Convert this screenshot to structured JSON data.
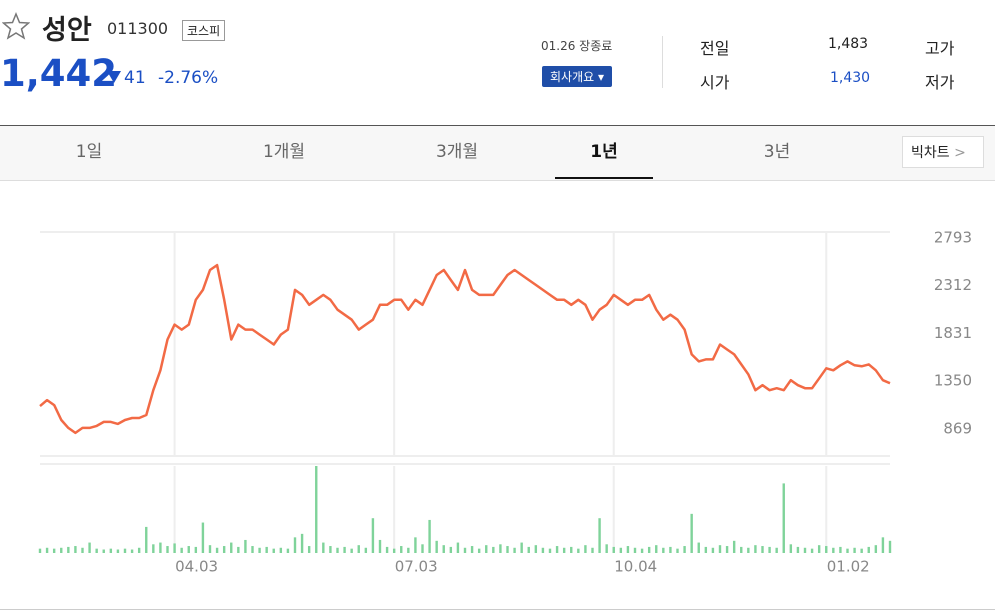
{
  "header": {
    "name": "성안",
    "code": "011300",
    "market": "코스피",
    "price": "1,442",
    "change": "41",
    "change_pct": "-2.76%",
    "status": "01.26 장종료",
    "company_button": "회사개요",
    "info": [
      {
        "label": "전일",
        "value": "1,483"
      },
      {
        "label": "시가",
        "value": "1,430"
      }
    ],
    "extra_labels": [
      "고가",
      "저가"
    ]
  },
  "tabs": {
    "items": [
      "1일",
      "1개월",
      "3개월",
      "1년",
      "3년"
    ],
    "active": 3,
    "big_chart": "빅차트"
  },
  "chart_data": {
    "type": "line",
    "categories": [
      null,
      null,
      null,
      null,
      null,
      null,
      null,
      null,
      null,
      null,
      null,
      null,
      null,
      null,
      null,
      null,
      null,
      null,
      null,
      "04.03",
      null,
      null,
      null,
      null,
      null,
      null,
      null,
      null,
      null,
      null,
      null,
      null,
      null,
      null,
      null,
      null,
      null,
      null,
      null,
      null,
      null,
      null,
      null,
      null,
      null,
      null,
      null,
      null,
      null,
      null,
      "07.03",
      null,
      null,
      null,
      null,
      null,
      null,
      null,
      null,
      null,
      null,
      null,
      null,
      null,
      null,
      null,
      null,
      null,
      null,
      null,
      null,
      null,
      null,
      null,
      null,
      null,
      null,
      null,
      null,
      null,
      null,
      "10.04",
      null,
      null,
      null,
      null,
      null,
      null,
      null,
      null,
      null,
      null,
      null,
      null,
      null,
      null,
      null,
      null,
      null,
      null,
      null,
      null,
      null,
      null,
      null,
      null,
      null,
      null,
      null,
      null,
      null,
      "01.02",
      null,
      null,
      null,
      null,
      null,
      null,
      null,
      null,
      null
    ],
    "series": [
      {
        "name": "price",
        "color": "#f26a45",
        "values": [
          1100,
          1160,
          1110,
          960,
          880,
          830,
          880,
          880,
          900,
          940,
          940,
          920,
          960,
          980,
          980,
          1010,
          1260,
          1460,
          1770,
          1920,
          1870,
          1920,
          2170,
          2270,
          2470,
          2520,
          2170,
          1770,
          1920,
          1870,
          1870,
          1820,
          1770,
          1720,
          1820,
          1870,
          2270,
          2220,
          2120,
          2170,
          2220,
          2170,
          2070,
          2020,
          1970,
          1870,
          1920,
          1970,
          2120,
          2120,
          2170,
          2170,
          2070,
          2170,
          2120,
          2270,
          2420,
          2470,
          2370,
          2270,
          2470,
          2270,
          2220,
          2220,
          2220,
          2320,
          2420,
          2470,
          2420,
          2370,
          2320,
          2270,
          2220,
          2170,
          2170,
          2120,
          2170,
          2120,
          1970,
          2070,
          2120,
          2220,
          2170,
          2120,
          2170,
          2170,
          2220,
          2070,
          1970,
          2020,
          1970,
          1870,
          1620,
          1550,
          1570,
          1570,
          1720,
          1670,
          1620,
          1520,
          1420,
          1260,
          1310,
          1260,
          1280,
          1260,
          1360,
          1310,
          1280,
          1280,
          1380,
          1480,
          1460,
          1510,
          1550,
          1510,
          1500,
          1520,
          1460,
          1360,
          1330
        ]
      },
      {
        "name": "volume",
        "color": "#7fd39a",
        "values": [
          5,
          6,
          5,
          6,
          7,
          8,
          6,
          12,
          5,
          4,
          5,
          4,
          5,
          4,
          6,
          30,
          10,
          12,
          8,
          11,
          6,
          8,
          7,
          35,
          9,
          6,
          8,
          12,
          7,
          15,
          8,
          6,
          7,
          5,
          6,
          5,
          18,
          22,
          8,
          100,
          12,
          8,
          6,
          7,
          5,
          9,
          6,
          40,
          15,
          7,
          5,
          8,
          6,
          18,
          10,
          38,
          14,
          9,
          7,
          12,
          6,
          8,
          5,
          9,
          7,
          10,
          8,
          6,
          12,
          7,
          9,
          6,
          5,
          8,
          6,
          7,
          5,
          9,
          6,
          40,
          10,
          7,
          6,
          8,
          6,
          5,
          7,
          9,
          6,
          7,
          5,
          8,
          45,
          12,
          7,
          6,
          9,
          8,
          14,
          7,
          6,
          9,
          8,
          7,
          6,
          80,
          10,
          7,
          6,
          5,
          9,
          8,
          6,
          7,
          5,
          6,
          5,
          7,
          9,
          18,
          14
        ]
      }
    ],
    "ylim": [
      597,
      2853
    ],
    "yticks": [
      869,
      1350,
      1831,
      2312,
      2793
    ],
    "vlim": [
      0,
      100
    ],
    "grid": "x"
  }
}
